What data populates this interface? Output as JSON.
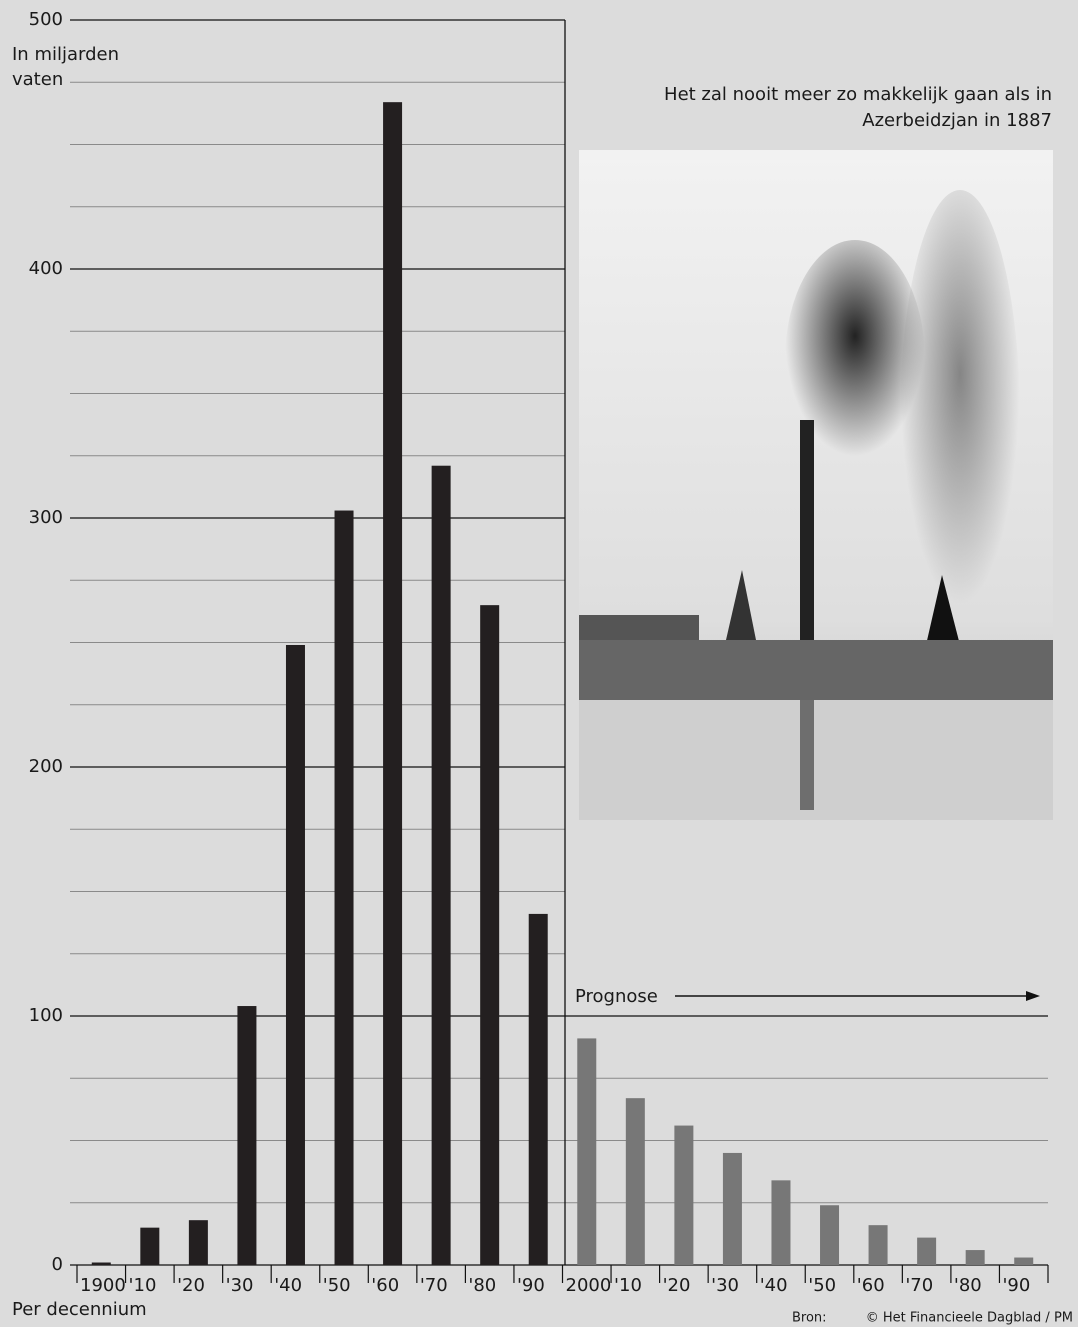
{
  "chart_data": {
    "type": "bar",
    "y_label": [
      "In miljarden",
      "vaten"
    ],
    "x_label": "Per decennium",
    "annotation": "Prognose",
    "photo_caption": [
      "Het zal nooit meer zo makkelijk gaan als in",
      "Azerbeidzjan in 1887"
    ],
    "source_label": "Bron:",
    "source": "© Het Financieele Dagblad / PM",
    "categories": [
      "1900",
      "'10",
      "'20",
      "'30",
      "'40",
      "'50",
      "'60",
      "'70",
      "'80",
      "'90",
      "2000",
      "'10",
      "'20",
      "'30",
      "'40",
      "'50",
      "'60",
      "'70",
      "'80",
      "'90"
    ],
    "series": [
      {
        "color": "#231f20",
        "values": [
          1,
          15,
          18,
          104,
          249,
          303,
          467,
          321,
          265,
          141,
          null,
          null,
          null,
          null,
          null,
          null,
          null,
          null,
          null,
          null
        ]
      },
      {
        "color": "#777777",
        "values": [
          null,
          null,
          null,
          null,
          null,
          null,
          null,
          null,
          null,
          null,
          91,
          67,
          56,
          45,
          34,
          24,
          16,
          11,
          6,
          3
        ]
      }
    ],
    "ylim": [
      0,
      500
    ],
    "yticks": [
      0,
      100,
      200,
      300,
      400,
      500
    ],
    "minor_yticks": [
      25,
      50,
      75,
      125,
      150,
      175,
      225,
      250,
      275,
      325,
      350,
      375,
      425,
      450,
      475
    ],
    "grid": true
  }
}
